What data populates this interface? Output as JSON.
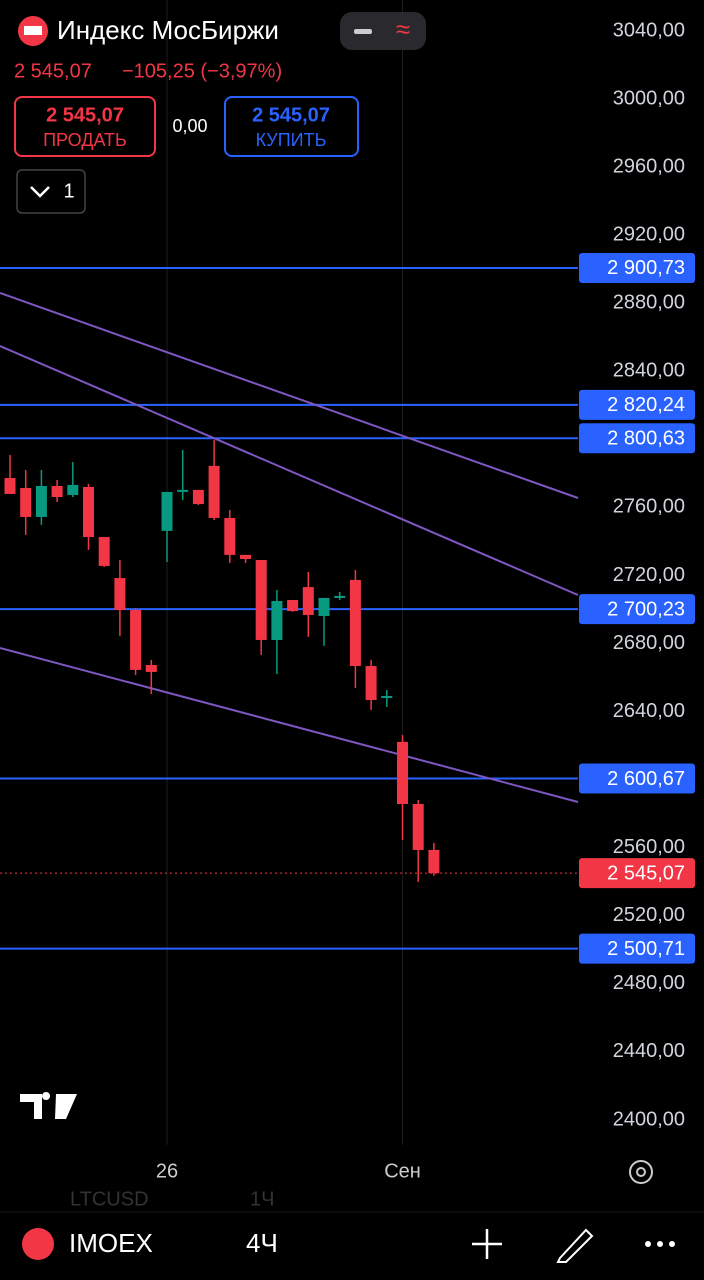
{
  "header": {
    "title": "Индекс МосБиржи",
    "price": "2 545,07",
    "change": "−105,25 (−3,97%)"
  },
  "trade": {
    "sell_price": "2 545,07",
    "sell_label": "ПРОДАТЬ",
    "spread": "0,00",
    "buy_price": "2 545,07",
    "buy_label": "КУПИТЬ"
  },
  "indicators": {
    "count": "1"
  },
  "chart_data": {
    "type": "candlestick",
    "categories": [
      null,
      null,
      null,
      null,
      null,
      null,
      null,
      null,
      null,
      null,
      "26",
      null,
      null,
      null,
      null,
      null,
      null,
      null,
      null,
      null,
      null,
      null,
      null,
      null,
      null,
      "Сен",
      null,
      null
    ],
    "series": [
      {
        "up_color": "#089981",
        "down_color": "#f23645",
        "open": [
          2777.3,
          2771.4,
          2754.4,
          2772.6,
          2767.3,
          2772.0,
          2742.6,
          2718.5,
          2699.7,
          2667.4,
          2746.2,
          2769.1,
          2770.3,
          2784.4,
          2753.8,
          2732.1,
          2729.1,
          2682.1,
          2705.6,
          2713.2,
          2696.2,
          2706.8,
          2717.4,
          2666.8,
          2648.0,
          2622.2,
          2585.7,
          2558.7
        ],
        "high": [
          2790.8,
          2782.0,
          2782.0,
          2776.1,
          2786.7,
          2773.8,
          2742.6,
          2729.1,
          2700.9,
          2670.4,
          2769.1,
          2793.8,
          2770.3,
          2799.6,
          2758.5,
          2732.1,
          2729.1,
          2711.5,
          2705.6,
          2722.1,
          2706.8,
          2710.3,
          2723.2,
          2670.4,
          2652.7,
          2626.3,
          2588.1,
          2562.8
        ],
        "low": [
          2767.9,
          2743.8,
          2749.7,
          2763.2,
          2766.1,
          2735.0,
          2725.0,
          2684.5,
          2661.5,
          2650.4,
          2727.9,
          2764.4,
          2761.4,
          2752.6,
          2727.4,
          2727.4,
          2673.3,
          2662.0,
          2698.6,
          2683.9,
          2678.6,
          2705.6,
          2653.9,
          2641.0,
          2642.7,
          2564.6,
          2539.9,
          2543.5
        ],
        "close": [
          2767.9,
          2754.4,
          2772.6,
          2766.1,
          2773.2,
          2742.6,
          2725.6,
          2699.7,
          2664.5,
          2663.3,
          2769.1,
          2770.3,
          2762.0,
          2753.8,
          2732.1,
          2729.7,
          2682.1,
          2705.0,
          2699.1,
          2696.8,
          2706.8,
          2708.0,
          2666.8,
          2646.8,
          2649.2,
          2585.7,
          2558.7,
          2545.07
        ]
      }
    ],
    "ylim": [
      2385.3,
      3058.2
    ],
    "yticks": [
      {
        "value": 3040,
        "label": "3040,00"
      },
      {
        "value": 3000,
        "label": "3000,00"
      },
      {
        "value": 2960,
        "label": "2960,00"
      },
      {
        "value": 2920,
        "label": "2920,00"
      },
      {
        "value": 2880,
        "label": "2880,00"
      },
      {
        "value": 2840,
        "label": "2840,00"
      },
      {
        "value": 2800,
        "label": "2800,00"
      },
      {
        "value": 2760,
        "label": "2760,00"
      },
      {
        "value": 2720,
        "label": "2720,00"
      },
      {
        "value": 2680,
        "label": "2680,00"
      },
      {
        "value": 2640,
        "label": "2640,00"
      },
      {
        "value": 2600,
        "label": "2600,00"
      },
      {
        "value": 2560,
        "label": "2560,00"
      },
      {
        "value": 2520,
        "label": "2520,00"
      },
      {
        "value": 2480,
        "label": "2480,00"
      },
      {
        "value": 2440,
        "label": "2440,00"
      },
      {
        "value": 2400,
        "label": "2400,00"
      }
    ],
    "price_lines": [
      {
        "value": 2900.73,
        "label": "2 900,73"
      },
      {
        "value": 2820.24,
        "label": "2 820,24"
      },
      {
        "value": 2800.63,
        "label": "2 800,63"
      },
      {
        "value": 2700.23,
        "label": "2 700,23"
      },
      {
        "value": 2600.67,
        "label": "2 600,67"
      },
      {
        "value": 2500.71,
        "label": "2 500,71"
      }
    ],
    "price_line_color": "#2962ff",
    "current_price": {
      "value": 2545.07,
      "label": "2 545,07"
    },
    "current_price_color": "#f23645"
  },
  "footer": {
    "symbol": "IMOEX",
    "interval": "4Ч",
    "ghost_symbol": "LTCUSD",
    "ghost_interval": "1Ч"
  }
}
